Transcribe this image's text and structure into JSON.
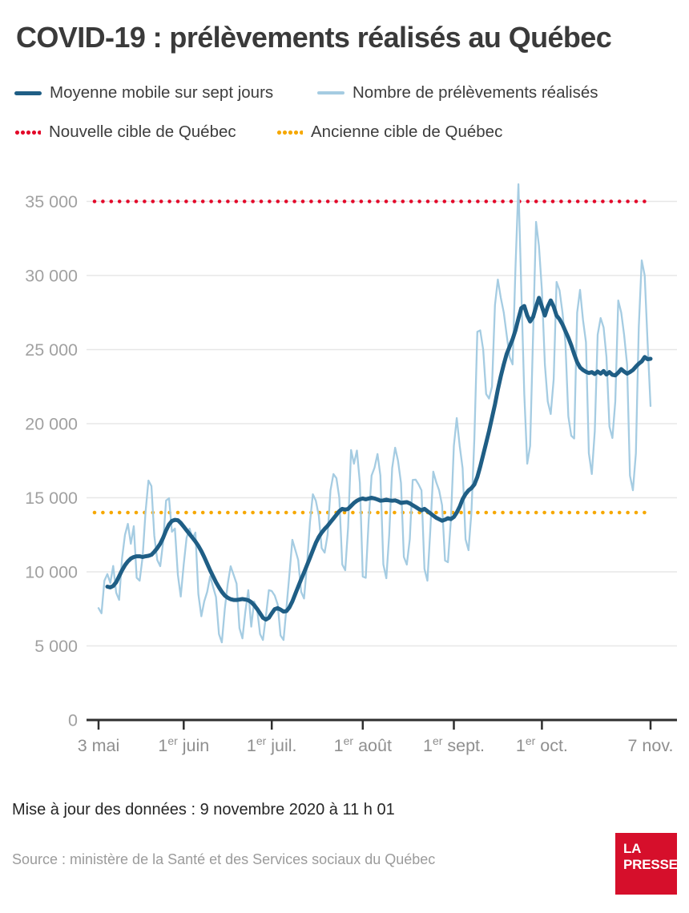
{
  "header": {
    "title": "COVID-19 : prélèvements réalisés au Québec"
  },
  "legend": {
    "moving_avg": "Moyenne mobile sur sept jours",
    "daily": "Nombre de prélèvements réalisés",
    "new_target": "Nouvelle cible de Québec",
    "old_target": "Ancienne cible de Québec"
  },
  "footer": {
    "update_note": "Mise à jour des données : 9 novembre 2020 à 11 h 01",
    "source_note": "Source : ministère de la Santé et des Services sociaux du Québec",
    "brand": {
      "line1": "LA",
      "line2": "PRESSE"
    }
  },
  "chart_data": {
    "type": "line",
    "title": "COVID-19 : prélèvements réalisés au Québec",
    "x_axis": {
      "unit": "day",
      "start_label": "3 mai",
      "end_label": "7 nov.",
      "total_days": 188,
      "ticks": [
        {
          "day": 0,
          "pre": "3 mai",
          "sup": "",
          "post": ""
        },
        {
          "day": 29,
          "pre": "1",
          "sup": "er",
          "post": " juin"
        },
        {
          "day": 59,
          "pre": "1",
          "sup": "er",
          "post": " juil."
        },
        {
          "day": 90,
          "pre": "1",
          "sup": "er",
          "post": " août"
        },
        {
          "day": 121,
          "pre": "1",
          "sup": "er",
          "post": " sept."
        },
        {
          "day": 151,
          "pre": "1",
          "sup": "er",
          "post": " oct."
        },
        {
          "day": 188,
          "pre": "7 nov.",
          "sup": "",
          "post": ""
        }
      ]
    },
    "y_axis": {
      "min": 0,
      "max": 36500,
      "grid": true,
      "ticks": [
        {
          "value": 0,
          "label": "0"
        },
        {
          "value": 5000,
          "label": "5 000"
        },
        {
          "value": 10000,
          "label": "10 000"
        },
        {
          "value": 15000,
          "label": "15 000"
        },
        {
          "value": 20000,
          "label": "20 000"
        },
        {
          "value": 25000,
          "label": "25 000"
        },
        {
          "value": 30000,
          "label": "30 000"
        },
        {
          "value": 35000,
          "label": "35 000"
        }
      ]
    },
    "targets": {
      "new": {
        "label": "Nouvelle cible de Québec",
        "value": 35000
      },
      "old": {
        "label": "Ancienne cible de Québec",
        "value": 14000
      }
    },
    "series": {
      "daily": {
        "name": "Nombre de prélèvements réalisés",
        "start_day": 0,
        "values": [
          7550,
          7200,
          9400,
          9850,
          9250,
          10400,
          8600,
          8100,
          10900,
          12500,
          13240,
          11890,
          13080,
          9600,
          9400,
          11000,
          14000,
          16160,
          15790,
          12430,
          10800,
          10380,
          12000,
          14810,
          14970,
          12700,
          12920,
          9800,
          8330,
          10500,
          12300,
          12920,
          12270,
          12650,
          8500,
          7000,
          8000,
          8650,
          9700,
          9000,
          8300,
          5800,
          5240,
          7500,
          9200,
          10380,
          9800,
          9200,
          6200,
          5510,
          7300,
          8760,
          6300,
          8000,
          7500,
          5800,
          5400,
          7000,
          8760,
          8700,
          8400,
          7800,
          5700,
          5400,
          7600,
          9800,
          12160,
          11500,
          10800,
          8650,
          8200,
          10500,
          13350,
          15240,
          14800,
          13800,
          11600,
          11300,
          12500,
          15500,
          16600,
          16320,
          15000,
          10500,
          10110,
          13000,
          18220,
          17300,
          18190,
          16000,
          9680,
          9600,
          13500,
          16500,
          17030,
          17950,
          16500,
          10500,
          9570,
          12500,
          17000,
          18380,
          17500,
          16000,
          11000,
          10490,
          12200,
          16200,
          16220,
          15900,
          15500,
          10200,
          9400,
          12800,
          16760,
          16050,
          15500,
          14500,
          10760,
          10650,
          13500,
          18500,
          20380,
          18500,
          17000,
          12200,
          11460,
          14000,
          19000,
          26200,
          26300,
          25000,
          22000,
          21700,
          22500,
          28000,
          29730,
          28500,
          27500,
          26000,
          24500,
          24000,
          30500,
          36160,
          29000,
          22000,
          17300,
          18500,
          26000,
          33620,
          32000,
          29000,
          24000,
          21500,
          20650,
          23000,
          29570,
          29000,
          27500,
          25500,
          20500,
          19190,
          19000,
          27500,
          29030,
          27000,
          25500,
          18000,
          16600,
          19500,
          26000,
          27130,
          26500,
          24500,
          19800,
          19030,
          21500,
          28320,
          27500,
          26000,
          24000,
          16500,
          15510,
          18000,
          26500,
          31020,
          30000,
          25500,
          21190
        ]
      },
      "moving_avg": {
        "name": "Moyenne mobile sur sept jours",
        "start_day": 3,
        "values": [
          9000,
          8950,
          9050,
          9300,
          9700,
          10100,
          10450,
          10700,
          10900,
          11000,
          11050,
          11050,
          11000,
          11050,
          11080,
          11150,
          11350,
          11600,
          11900,
          12300,
          12800,
          13200,
          13430,
          13510,
          13480,
          13300,
          13050,
          12800,
          12550,
          12300,
          12050,
          11750,
          11400,
          11000,
          10550,
          10100,
          9700,
          9300,
          8950,
          8650,
          8400,
          8250,
          8150,
          8100,
          8100,
          8130,
          8160,
          8130,
          8080,
          7950,
          7750,
          7500,
          7200,
          6900,
          6780,
          6900,
          7200,
          7480,
          7550,
          7450,
          7320,
          7350,
          7600,
          8000,
          8500,
          9000,
          9500,
          9950,
          10450,
          10950,
          11450,
          11950,
          12350,
          12650,
          12900,
          13100,
          13350,
          13600,
          13850,
          14100,
          14250,
          14200,
          14250,
          14450,
          14650,
          14800,
          14900,
          14950,
          14900,
          14950,
          15000,
          14950,
          14880,
          14800,
          14820,
          14870,
          14820,
          14800,
          14820,
          14750,
          14650,
          14680,
          14700,
          14620,
          14500,
          14380,
          14250,
          14150,
          14250,
          14100,
          13950,
          13800,
          13650,
          13550,
          13450,
          13520,
          13620,
          13560,
          13700,
          14000,
          14400,
          14900,
          15250,
          15500,
          15650,
          15900,
          16400,
          17100,
          17900,
          18700,
          19500,
          20400,
          21300,
          22300,
          23200,
          24000,
          24700,
          25200,
          25700,
          26300,
          27100,
          27800,
          27940,
          27300,
          26900,
          27200,
          27900,
          28490,
          27900,
          27300,
          27900,
          28320,
          27900,
          27300,
          27050,
          26700,
          26250,
          25800,
          25300,
          24700,
          24150,
          23800,
          23620,
          23500,
          23420,
          23480,
          23350,
          23520,
          23380,
          23550,
          23320,
          23480,
          23300,
          23260,
          23450,
          23680,
          23520,
          23380,
          23480,
          23620,
          23850,
          24050,
          24200,
          24500,
          24350,
          24380
        ]
      }
    },
    "colors": {
      "moving_avg": "#1f5e85",
      "daily": "#a5cce2",
      "new_target": "#e3092a",
      "old_target": "#f6a800",
      "grid": "#e7e7e7",
      "axis": "#2f2f2f",
      "y_label": "#a1a1a1",
      "x_label": "#8f8f8f",
      "brand_red": "#d60f2b",
      "text": "#3a3a3a"
    },
    "legend_position": "top"
  }
}
